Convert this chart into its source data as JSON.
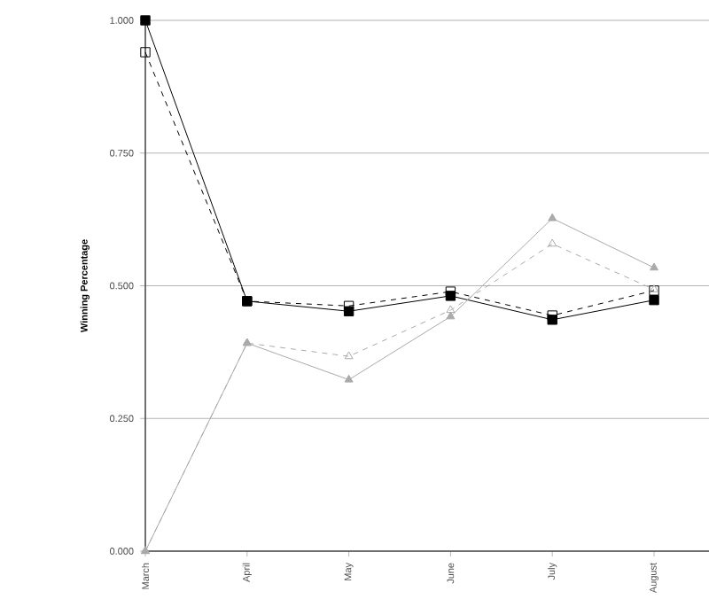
{
  "chart_data": {
    "type": "line",
    "ylabel": "Winning Percentage",
    "categories": [
      "March",
      "April",
      "May",
      "June",
      "July",
      "August"
    ],
    "ylim": [
      0,
      1
    ],
    "yticks": [
      {
        "value": 0,
        "label": "0.000"
      },
      {
        "value": 0.25,
        "label": "0.250"
      },
      {
        "value": 0.5,
        "label": "0.500"
      },
      {
        "value": 0.75,
        "label": "0.750"
      },
      {
        "value": 1,
        "label": "1.000"
      }
    ],
    "grid": "y",
    "series": [
      {
        "color": "#000000",
        "marker": "square",
        "line_style": "solid",
        "values": [
          1.0,
          0.471,
          0.452,
          0.481,
          0.436,
          0.473
        ]
      },
      {
        "color": "#000000",
        "marker": "square",
        "line_style": "dashed",
        "values": [
          0.94,
          0.471,
          0.462,
          0.489,
          0.444,
          0.491
        ]
      },
      {
        "color": "#aaaaaa",
        "marker": "triangle",
        "line_style": "solid",
        "values": [
          0.0,
          0.392,
          0.323,
          0.442,
          0.627,
          0.534
        ]
      },
      {
        "color": "#aaaaaa",
        "marker": "triangle",
        "line_style": "dashed",
        "values": [
          0.0,
          0.392,
          0.367,
          0.454,
          0.579,
          0.493
        ]
      }
    ]
  }
}
